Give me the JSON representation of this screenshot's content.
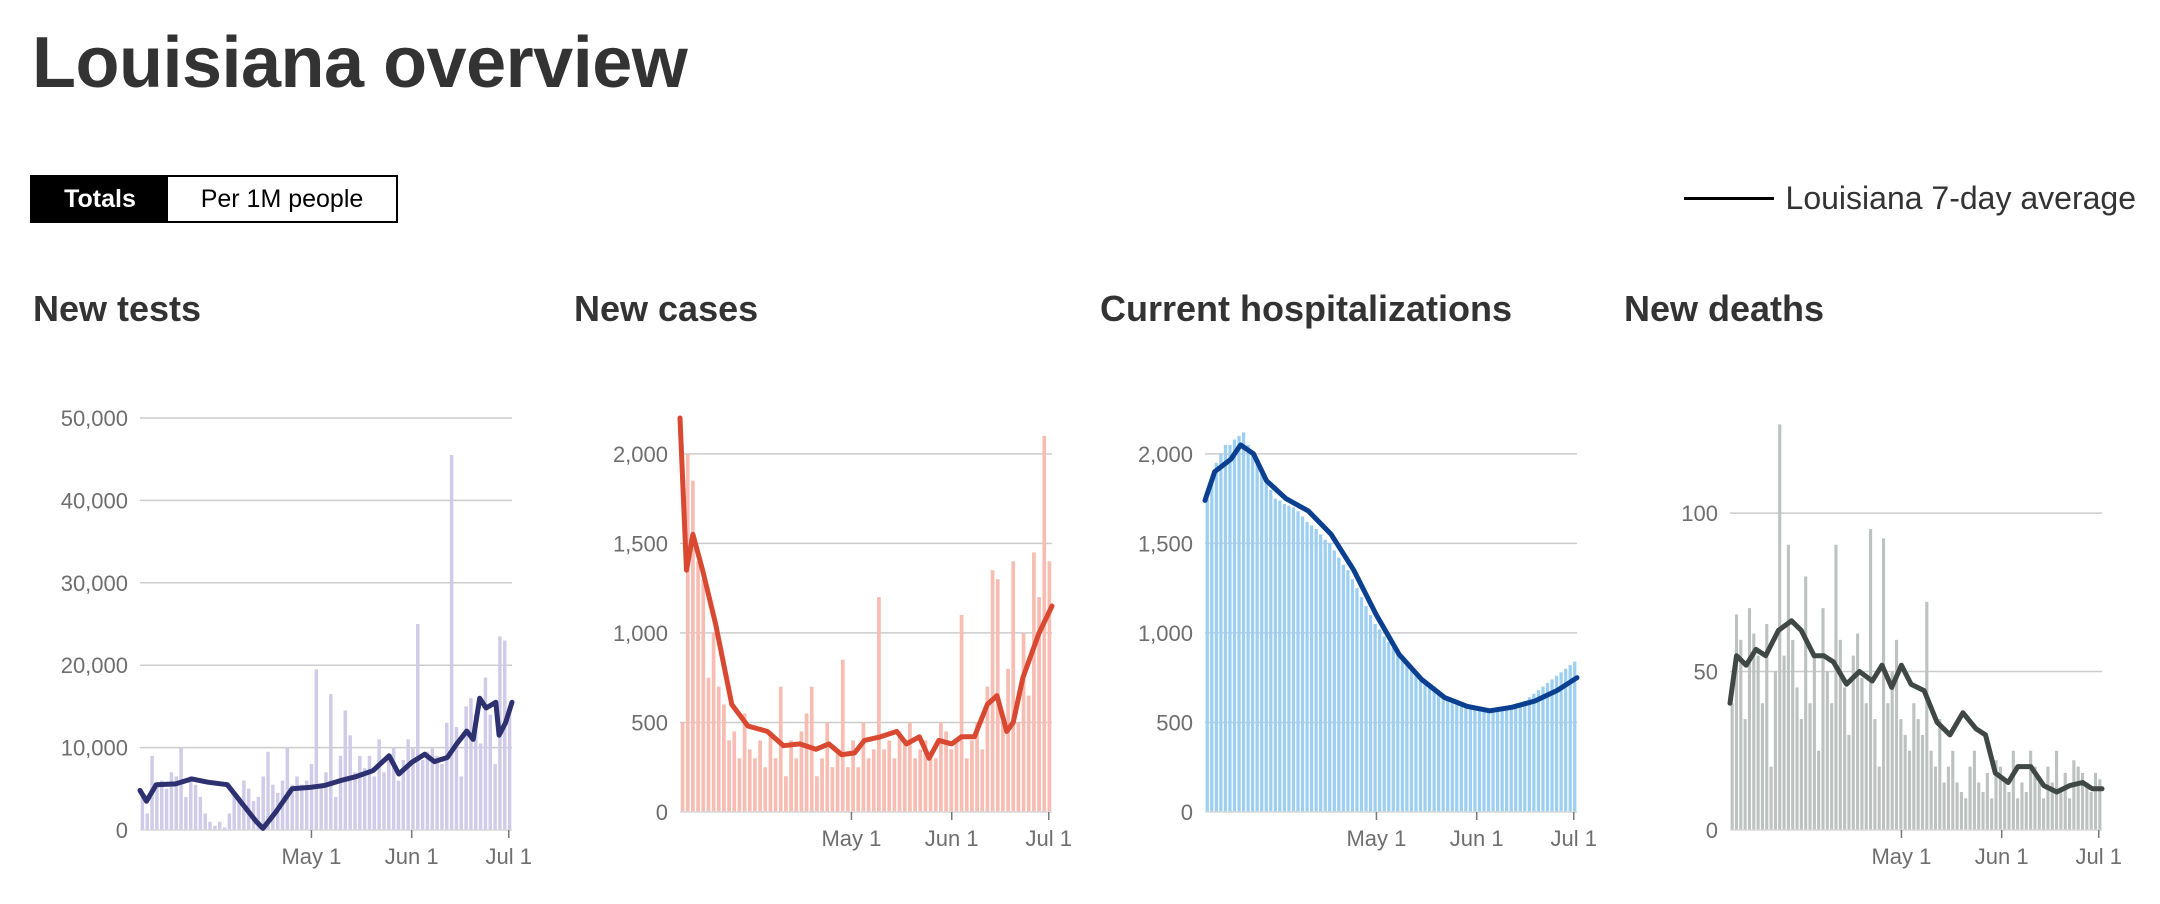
{
  "title": "Louisiana overview",
  "toggle": {
    "totals_label": "Totals",
    "per_million_label": "Per 1M people",
    "selected": "Totals"
  },
  "legend": {
    "label": "Louisiana 7-day average"
  },
  "colors": {
    "legend_line": "#000000"
  },
  "chart_data": [
    {
      "type": "bar",
      "title": "New tests",
      "bar_color": "#cfcbe8",
      "line_color": "#2e3170",
      "x_range": [
        "2020-03-09",
        "2020-07-02"
      ],
      "x_ticks": [
        {
          "date": "2020-05-01",
          "label": "May 1"
        },
        {
          "date": "2020-06-01",
          "label": "Jun 1"
        },
        {
          "date": "2020-07-01",
          "label": "Jul 1"
        }
      ],
      "y_range": [
        0,
        50000
      ],
      "y_ticks": [
        {
          "value": 0,
          "label": "0"
        },
        {
          "value": 10000,
          "label": "10,000"
        },
        {
          "value": 20000,
          "label": "20,000"
        },
        {
          "value": 30000,
          "label": "30,000"
        },
        {
          "value": 40000,
          "label": "40,000"
        },
        {
          "value": 50000,
          "label": "50,000"
        }
      ],
      "bars": [
        4000,
        2000,
        9000,
        5500,
        6000,
        5000,
        7000,
        6500,
        10000,
        4000,
        6500,
        5500,
        4000,
        2000,
        1000,
        500,
        1000,
        300,
        2000,
        4500,
        4000,
        6000,
        5000,
        3500,
        4000,
        6500,
        9500,
        5500,
        4500,
        6000,
        10000,
        5500,
        6500,
        5500,
        6000,
        8000,
        19500,
        5500,
        7000,
        16500,
        4000,
        9000,
        14500,
        11500,
        7000,
        9000,
        7500,
        9000,
        6500,
        11000,
        7000,
        9000,
        10000,
        6000,
        8500,
        11000,
        10000,
        25000,
        8500,
        9500,
        10000,
        9000,
        8000,
        13000,
        45500,
        12500,
        6500,
        15000,
        16000,
        14000,
        10500,
        18500,
        14000,
        8000,
        23500,
        23000,
        15000
      ],
      "avg": [
        {
          "d": "2020-03-09",
          "v": 4800
        },
        {
          "d": "2020-03-11",
          "v": 3500
        },
        {
          "d": "2020-03-14",
          "v": 5500
        },
        {
          "d": "2020-03-20",
          "v": 5600
        },
        {
          "d": "2020-03-25",
          "v": 6200
        },
        {
          "d": "2020-03-30",
          "v": 5800
        },
        {
          "d": "2020-04-05",
          "v": 5500
        },
        {
          "d": "2020-04-10",
          "v": 3000
        },
        {
          "d": "2020-04-14",
          "v": 1000
        },
        {
          "d": "2020-04-16",
          "v": 200
        },
        {
          "d": "2020-04-20",
          "v": 2200
        },
        {
          "d": "2020-04-25",
          "v": 5000
        },
        {
          "d": "2020-05-01",
          "v": 5200
        },
        {
          "d": "2020-05-05",
          "v": 5400
        },
        {
          "d": "2020-05-10",
          "v": 6000
        },
        {
          "d": "2020-05-15",
          "v": 6500
        },
        {
          "d": "2020-05-20",
          "v": 7200
        },
        {
          "d": "2020-05-25",
          "v": 9000
        },
        {
          "d": "2020-05-28",
          "v": 6800
        },
        {
          "d": "2020-06-01",
          "v": 8200
        },
        {
          "d": "2020-06-05",
          "v": 9200
        },
        {
          "d": "2020-06-08",
          "v": 8300
        },
        {
          "d": "2020-06-12",
          "v": 8800
        },
        {
          "d": "2020-06-15",
          "v": 10500
        },
        {
          "d": "2020-06-18",
          "v": 12000
        },
        {
          "d": "2020-06-20",
          "v": 11000
        },
        {
          "d": "2020-06-22",
          "v": 16000
        },
        {
          "d": "2020-06-24",
          "v": 14800
        },
        {
          "d": "2020-06-27",
          "v": 15500
        },
        {
          "d": "2020-06-28",
          "v": 11500
        },
        {
          "d": "2020-06-30",
          "v": 13000
        },
        {
          "d": "2020-07-02",
          "v": 15500
        }
      ]
    },
    {
      "type": "bar",
      "title": "New cases",
      "bar_color": "#f7bdb2",
      "line_color": "#d94830",
      "x_range": [
        "2020-03-09",
        "2020-07-02"
      ],
      "x_ticks": [
        {
          "date": "2020-05-01",
          "label": "May 1"
        },
        {
          "date": "2020-06-01",
          "label": "Jun 1"
        },
        {
          "date": "2020-07-01",
          "label": "Jul 1"
        }
      ],
      "y_range": [
        0,
        2200
      ],
      "y_ticks": [
        {
          "value": 0,
          "label": "0"
        },
        {
          "value": 500,
          "label": "500"
        },
        {
          "value": 1000,
          "label": "1,000"
        },
        {
          "value": 1500,
          "label": "1,500"
        },
        {
          "value": 2000,
          "label": "2,000"
        }
      ],
      "bars": [
        500,
        2000,
        1850,
        1400,
        1300,
        750,
        1000,
        700,
        600,
        400,
        450,
        300,
        550,
        350,
        300,
        400,
        250,
        450,
        300,
        700,
        200,
        400,
        300,
        450,
        550,
        700,
        200,
        300,
        500,
        250,
        350,
        850,
        250,
        400,
        250,
        500,
        300,
        350,
        1200,
        350,
        400,
        300,
        450,
        400,
        500,
        300,
        350,
        400,
        300,
        300,
        500,
        450,
        350,
        400,
        1100,
        300,
        400,
        500,
        350,
        700,
        1350,
        1300,
        500,
        800,
        1400,
        500,
        1000,
        650,
        1450,
        1200,
        2100,
        1400
      ],
      "avg": [
        {
          "d": "2020-03-09",
          "v": 2200
        },
        {
          "d": "2020-03-11",
          "v": 1350
        },
        {
          "d": "2020-03-13",
          "v": 1550
        },
        {
          "d": "2020-03-16",
          "v": 1350
        },
        {
          "d": "2020-03-20",
          "v": 1050
        },
        {
          "d": "2020-03-25",
          "v": 600
        },
        {
          "d": "2020-03-30",
          "v": 480
        },
        {
          "d": "2020-04-05",
          "v": 450
        },
        {
          "d": "2020-04-10",
          "v": 370
        },
        {
          "d": "2020-04-15",
          "v": 380
        },
        {
          "d": "2020-04-20",
          "v": 350
        },
        {
          "d": "2020-04-24",
          "v": 380
        },
        {
          "d": "2020-04-28",
          "v": 320
        },
        {
          "d": "2020-05-02",
          "v": 330
        },
        {
          "d": "2020-05-05",
          "v": 400
        },
        {
          "d": "2020-05-10",
          "v": 420
        },
        {
          "d": "2020-05-15",
          "v": 450
        },
        {
          "d": "2020-05-18",
          "v": 380
        },
        {
          "d": "2020-05-22",
          "v": 420
        },
        {
          "d": "2020-05-25",
          "v": 300
        },
        {
          "d": "2020-05-28",
          "v": 400
        },
        {
          "d": "2020-06-01",
          "v": 380
        },
        {
          "d": "2020-06-04",
          "v": 420
        },
        {
          "d": "2020-06-08",
          "v": 420
        },
        {
          "d": "2020-06-12",
          "v": 600
        },
        {
          "d": "2020-06-15",
          "v": 650
        },
        {
          "d": "2020-06-18",
          "v": 450
        },
        {
          "d": "2020-06-20",
          "v": 500
        },
        {
          "d": "2020-06-23",
          "v": 750
        },
        {
          "d": "2020-06-26",
          "v": 900
        },
        {
          "d": "2020-06-28",
          "v": 1000
        },
        {
          "d": "2020-07-02",
          "v": 1150
        }
      ]
    },
    {
      "type": "bar",
      "title": "Current hospitalizations",
      "bar_color": "#9ccff2",
      "line_color": "#0b3f8f",
      "x_range": [
        "2020-03-09",
        "2020-07-02"
      ],
      "x_ticks": [
        {
          "date": "2020-05-01",
          "label": "May 1"
        },
        {
          "date": "2020-06-01",
          "label": "Jun 1"
        },
        {
          "date": "2020-07-01",
          "label": "Jul 1"
        }
      ],
      "y_range": [
        0,
        2200
      ],
      "y_ticks": [
        {
          "value": 0,
          "label": "0"
        },
        {
          "value": 500,
          "label": "500"
        },
        {
          "value": 1000,
          "label": "1,000"
        },
        {
          "value": 1500,
          "label": "1,500"
        },
        {
          "value": 2000,
          "label": "2,000"
        }
      ],
      "bars": [
        1750,
        1850,
        1950,
        2000,
        2050,
        2050,
        2080,
        2100,
        2120,
        2050,
        2000,
        1950,
        1900,
        1850,
        1800,
        1750,
        1740,
        1720,
        1710,
        1700,
        1680,
        1650,
        1620,
        1600,
        1580,
        1550,
        1520,
        1500,
        1460,
        1420,
        1380,
        1350,
        1300,
        1250,
        1200,
        1150,
        1100,
        1050,
        1020,
        980,
        950,
        920,
        880,
        850,
        830,
        800,
        780,
        760,
        740,
        720,
        700,
        680,
        660,
        640,
        620,
        600,
        590,
        580,
        575,
        570,
        565,
        560,
        560,
        565,
        570,
        575,
        580,
        585,
        590,
        600,
        620,
        640,
        660,
        680,
        700,
        720,
        740,
        760,
        780,
        800,
        820,
        840
      ],
      "avg": [
        {
          "d": "2020-03-09",
          "v": 1740
        },
        {
          "d": "2020-03-12",
          "v": 1900
        },
        {
          "d": "2020-03-17",
          "v": 1970
        },
        {
          "d": "2020-03-20",
          "v": 2050
        },
        {
          "d": "2020-03-24",
          "v": 2000
        },
        {
          "d": "2020-03-28",
          "v": 1850
        },
        {
          "d": "2020-04-03",
          "v": 1750
        },
        {
          "d": "2020-04-10",
          "v": 1680
        },
        {
          "d": "2020-04-17",
          "v": 1550
        },
        {
          "d": "2020-04-24",
          "v": 1350
        },
        {
          "d": "2020-05-01",
          "v": 1100
        },
        {
          "d": "2020-05-08",
          "v": 880
        },
        {
          "d": "2020-05-15",
          "v": 740
        },
        {
          "d": "2020-05-22",
          "v": 640
        },
        {
          "d": "2020-05-29",
          "v": 590
        },
        {
          "d": "2020-06-05",
          "v": 565
        },
        {
          "d": "2020-06-12",
          "v": 585
        },
        {
          "d": "2020-06-19",
          "v": 620
        },
        {
          "d": "2020-06-26",
          "v": 680
        },
        {
          "d": "2020-07-02",
          "v": 750
        }
      ]
    },
    {
      "type": "bar",
      "title": "New deaths",
      "bar_color": "#bdc1c0",
      "line_color": "#404846",
      "x_range": [
        "2020-03-09",
        "2020-07-02"
      ],
      "x_ticks": [
        {
          "date": "2020-05-01",
          "label": "May 1"
        },
        {
          "date": "2020-06-01",
          "label": "Jun 1"
        },
        {
          "date": "2020-07-01",
          "label": "Jul 1"
        }
      ],
      "y_range": [
        0,
        130
      ],
      "y_ticks": [
        {
          "value": 0,
          "label": "0"
        },
        {
          "value": 50,
          "label": "50"
        },
        {
          "value": 100,
          "label": "100"
        }
      ],
      "bars": [
        40,
        68,
        60,
        35,
        70,
        62,
        55,
        40,
        65,
        20,
        50,
        128,
        55,
        90,
        60,
        45,
        35,
        80,
        40,
        55,
        25,
        70,
        50,
        40,
        90,
        60,
        45,
        30,
        55,
        62,
        48,
        40,
        95,
        35,
        20,
        92,
        40,
        50,
        60,
        35,
        30,
        25,
        40,
        35,
        30,
        72,
        25,
        20,
        35,
        15,
        20,
        25,
        15,
        12,
        10,
        20,
        25,
        15,
        12,
        18,
        10,
        22,
        20,
        15,
        12,
        25,
        10,
        15,
        12,
        25,
        20,
        15,
        10,
        20,
        15,
        25,
        12,
        18,
        10,
        22,
        20,
        18,
        15,
        12,
        18,
        16
      ],
      "avg": [
        {
          "d": "2020-03-09",
          "v": 40
        },
        {
          "d": "2020-03-11",
          "v": 55
        },
        {
          "d": "2020-03-14",
          "v": 52
        },
        {
          "d": "2020-03-17",
          "v": 57
        },
        {
          "d": "2020-03-20",
          "v": 55
        },
        {
          "d": "2020-03-24",
          "v": 63
        },
        {
          "d": "2020-03-28",
          "v": 66
        },
        {
          "d": "2020-03-31",
          "v": 63
        },
        {
          "d": "2020-04-04",
          "v": 55
        },
        {
          "d": "2020-04-07",
          "v": 55
        },
        {
          "d": "2020-04-10",
          "v": 53
        },
        {
          "d": "2020-04-14",
          "v": 46
        },
        {
          "d": "2020-04-18",
          "v": 50
        },
        {
          "d": "2020-04-22",
          "v": 47
        },
        {
          "d": "2020-04-25",
          "v": 52
        },
        {
          "d": "2020-04-28",
          "v": 45
        },
        {
          "d": "2020-05-01",
          "v": 52
        },
        {
          "d": "2020-05-04",
          "v": 46
        },
        {
          "d": "2020-05-08",
          "v": 44
        },
        {
          "d": "2020-05-12",
          "v": 34
        },
        {
          "d": "2020-05-16",
          "v": 30
        },
        {
          "d": "2020-05-20",
          "v": 37
        },
        {
          "d": "2020-05-24",
          "v": 32
        },
        {
          "d": "2020-05-27",
          "v": 30
        },
        {
          "d": "2020-05-30",
          "v": 18
        },
        {
          "d": "2020-06-03",
          "v": 15
        },
        {
          "d": "2020-06-06",
          "v": 20
        },
        {
          "d": "2020-06-10",
          "v": 20
        },
        {
          "d": "2020-06-14",
          "v": 14
        },
        {
          "d": "2020-06-18",
          "v": 12
        },
        {
          "d": "2020-06-22",
          "v": 14
        },
        {
          "d": "2020-06-26",
          "v": 15
        },
        {
          "d": "2020-06-29",
          "v": 13
        },
        {
          "d": "2020-07-02",
          "v": 13
        }
      ]
    }
  ]
}
